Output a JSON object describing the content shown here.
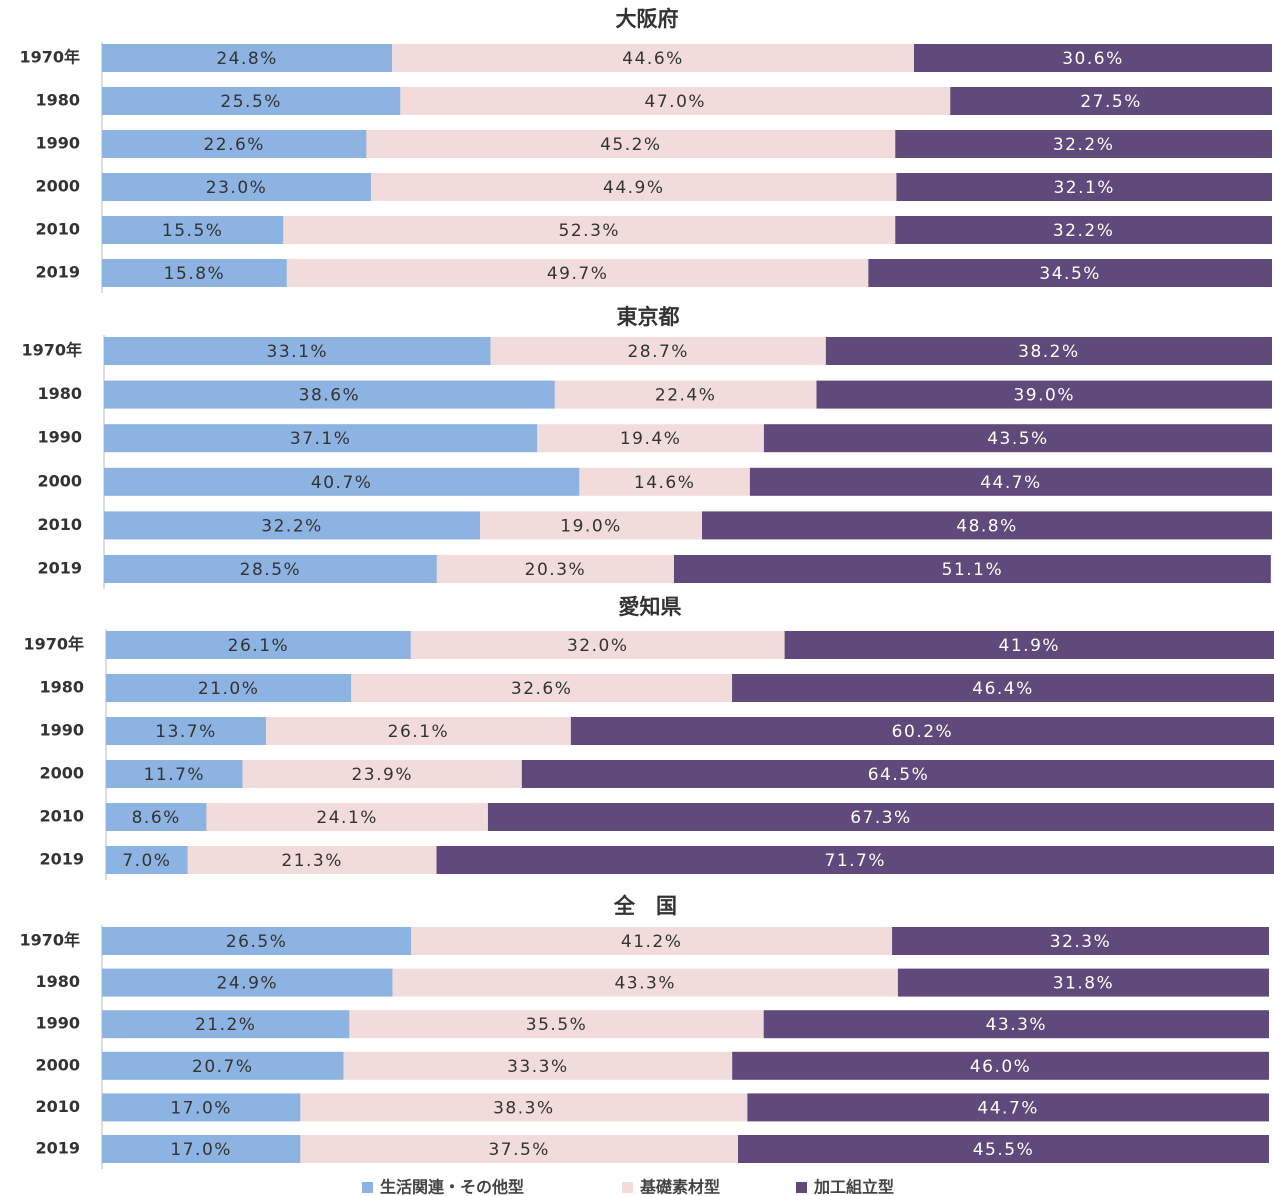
{
  "chart_data": [
    {
      "type": "stacked-bar-horizontal",
      "title": "大阪府",
      "categories": [
        "1970年",
        "1980",
        "1990",
        "2000",
        "2010",
        "2019"
      ],
      "xlim": [
        0,
        100
      ],
      "series": [
        {
          "name": "生活関連・その他型",
          "color": "#8db3e2",
          "values": [
            24.8,
            25.5,
            22.6,
            23.0,
            15.5,
            15.8
          ],
          "value_labels": [
            "24.8%",
            "25.5%",
            "22.6%",
            "23.0%",
            "15.5%",
            "15.8%"
          ]
        },
        {
          "name": "基礎素材型",
          "color": "#f2dcdb",
          "values": [
            44.6,
            47.0,
            45.2,
            44.9,
            52.3,
            49.7
          ],
          "value_labels": [
            "44.6%",
            "47.0%",
            "45.2%",
            "44.9%",
            "52.3%",
            "49.7%"
          ]
        },
        {
          "name": "加工組立型",
          "color": "#604a7b",
          "values": [
            30.6,
            27.5,
            32.2,
            32.1,
            32.2,
            34.5
          ],
          "value_labels": [
            "30.6%",
            "27.5%",
            "32.2%",
            "32.1%",
            "32.2%",
            "34.5%"
          ]
        }
      ]
    },
    {
      "type": "stacked-bar-horizontal",
      "title": "東京都",
      "categories": [
        "1970年",
        "1980",
        "1990",
        "2000",
        "2010",
        "2019"
      ],
      "xlim": [
        0,
        100
      ],
      "series": [
        {
          "name": "生活関連・その他型",
          "color": "#8db3e2",
          "values": [
            33.1,
            38.6,
            37.1,
            40.7,
            32.2,
            28.5
          ],
          "value_labels": [
            "33.1%",
            "38.6%",
            "37.1%",
            "40.7%",
            "32.2%",
            "28.5%"
          ]
        },
        {
          "name": "基礎素材型",
          "color": "#f2dcdb",
          "values": [
            28.7,
            22.4,
            19.4,
            14.6,
            19.0,
            20.3
          ],
          "value_labels": [
            "28.7%",
            "22.4%",
            "19.4%",
            "14.6%",
            "19.0%",
            "20.3%"
          ]
        },
        {
          "name": "加工組立型",
          "color": "#604a7b",
          "values": [
            38.2,
            39.0,
            43.5,
            44.7,
            48.8,
            51.1
          ],
          "value_labels": [
            "38.2%",
            "39.0%",
            "43.5%",
            "44.7%",
            "48.8%",
            "51.1%"
          ]
        }
      ]
    },
    {
      "type": "stacked-bar-horizontal",
      "title": "愛知県",
      "categories": [
        "1970年",
        "1980",
        "1990",
        "2000",
        "2010",
        "2019"
      ],
      "xlim": [
        0,
        100
      ],
      "series": [
        {
          "name": "生活関連・その他型",
          "color": "#8db3e2",
          "values": [
            26.1,
            21.0,
            13.7,
            11.7,
            8.6,
            7.0
          ],
          "value_labels": [
            "26.1%",
            "21.0%",
            "13.7%",
            "11.7%",
            "8.6%",
            "7.0%"
          ]
        },
        {
          "name": "基礎素材型",
          "color": "#f2dcdb",
          "values": [
            32.0,
            32.6,
            26.1,
            23.9,
            24.1,
            21.3
          ],
          "value_labels": [
            "32.0%",
            "32.6%",
            "26.1%",
            "23.9%",
            "24.1%",
            "21.3%"
          ]
        },
        {
          "name": "加工組立型",
          "color": "#604a7b",
          "values": [
            41.9,
            46.4,
            60.2,
            64.5,
            67.3,
            71.7
          ],
          "value_labels": [
            "41.9%",
            "46.4%",
            "60.2%",
            "64.5%",
            "67.3%",
            "71.7%"
          ]
        }
      ]
    },
    {
      "type": "stacked-bar-horizontal",
      "title": "全　国",
      "categories": [
        "1970年",
        "1980",
        "1990",
        "2000",
        "2010",
        "2019"
      ],
      "xlim": [
        0,
        100
      ],
      "series": [
        {
          "name": "生活関連・その他型",
          "color": "#8db3e2",
          "values": [
            26.5,
            24.9,
            21.2,
            20.7,
            17.0,
            17.0
          ],
          "value_labels": [
            "26.5%",
            "24.9%",
            "21.2%",
            "20.7%",
            "17.0%",
            "17.0%"
          ]
        },
        {
          "name": "基礎素材型",
          "color": "#f2dcdb",
          "values": [
            41.2,
            43.3,
            35.5,
            33.3,
            38.3,
            37.5
          ],
          "value_labels": [
            "41.2%",
            "43.3%",
            "35.5%",
            "33.3%",
            "38.3%",
            "37.5%"
          ]
        },
        {
          "name": "加工組立型",
          "color": "#604a7b",
          "values": [
            32.3,
            31.8,
            43.3,
            46.0,
            44.7,
            45.5
          ],
          "value_labels": [
            "32.3%",
            "31.8%",
            "43.3%",
            "46.0%",
            "44.7%",
            "45.5%"
          ]
        }
      ]
    }
  ]
}
